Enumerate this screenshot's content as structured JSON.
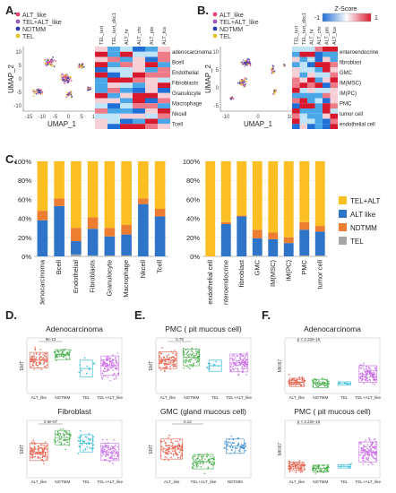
{
  "panels": {
    "A": {
      "letter": "A.",
      "legend": [
        "ALT_like",
        "TEL+ALT_like",
        "NDTMM",
        "TEL"
      ],
      "legend_colors": [
        "#e8457a",
        "#9b59b6",
        "#2c3e9e",
        "#e6c229"
      ],
      "umap_x_label": "UMAP_1",
      "umap_y_label": "UMAP_2",
      "umap_x_ticks": [
        "-15",
        "-10",
        "-5",
        "0",
        "5",
        "10"
      ],
      "umap_y_ticks": [
        "10",
        "5",
        "0",
        "-5",
        "-10"
      ],
      "heatmap_col_labels": [
        "TEL_tert",
        "TEL_tert_dkc1",
        "ALT_hr",
        "ALT_chr",
        "ALT_pts",
        "ALT_fus"
      ],
      "heatmap_row_labels": [
        "adenocarcinoma",
        "Bcell",
        "Endothelial",
        "Fibroblasts",
        "Granulocyte",
        "Macrophage",
        "Nkcell",
        "Tcell"
      ]
    },
    "B": {
      "letter": "B.",
      "legend": [
        "ALT_like",
        "TEL+ALT_like",
        "NDTMM",
        "TEL"
      ],
      "legend_colors": [
        "#e8457a",
        "#9b59b6",
        "#2c3e9e",
        "#e6c229"
      ],
      "umap_x_label": "UMAP_1",
      "umap_y_label": "UMAP_2",
      "umap_x_ticks": [
        "-10",
        "0",
        "10"
      ],
      "umap_y_ticks": [
        "10",
        "5",
        "0",
        "-5"
      ],
      "zscore_label": "Z-Score",
      "zscore_min": "-1",
      "zscore_max": "1",
      "heatmap_col_labels": [
        "TEL_tert",
        "TEL_tert_dkc1",
        "ALT_hr",
        "ALT_chr",
        "ALT_pts",
        "ALT_fus"
      ],
      "heatmap_row_labels": [
        "enteroendocrine",
        "fibroblast",
        "GMC",
        "IM(MSC)",
        "IM(PC)",
        "PMC",
        "tumor cell",
        "endothelial cell"
      ]
    },
    "C": {
      "letter": "C."
    },
    "D": {
      "letter": "D."
    },
    "E": {
      "letter": "E."
    },
    "F": {
      "letter": "F."
    }
  },
  "chart_data": [
    {
      "type": "bar",
      "stacked": true,
      "categories": [
        "adenocarcinoma",
        "Bcell",
        "Endothelial",
        "Fibroblasts",
        "Granulocyte",
        "Macrophage",
        "Nkcell",
        "Tcell"
      ],
      "y_ticks": [
        "0%",
        "20%",
        "40%",
        "60%",
        "80%",
        "100%"
      ],
      "series": [
        {
          "name": "TEL",
          "color": "#a6a6a6",
          "values": [
            0,
            0,
            2,
            1,
            1,
            1,
            0,
            0
          ]
        },
        {
          "name": "ALT like",
          "color": "#2e74c8",
          "values": [
            38,
            53,
            14,
            28,
            20,
            22,
            55,
            42
          ]
        },
        {
          "name": "NDTMM",
          "color": "#ed7d31",
          "values": [
            10,
            8,
            14,
            12,
            9,
            10,
            6,
            8
          ]
        },
        {
          "name": "TEL+ALT",
          "color": "#fbbf24",
          "values": [
            52,
            39,
            70,
            59,
            70,
            67,
            39,
            50
          ]
        }
      ]
    },
    {
      "type": "bar",
      "stacked": true,
      "categories": [
        "endothelial cell",
        "enteroendocrine",
        "fibroblast",
        "GMC",
        "IM(MSC)",
        "IM(PC)",
        "PMC",
        "tumor cell"
      ],
      "y_ticks": [
        "0%",
        "20%",
        "40%",
        "60%",
        "80%",
        "100%"
      ],
      "series": [
        {
          "name": "TEL",
          "color": "#a6a6a6",
          "values": [
            0,
            0,
            0,
            1,
            0,
            0,
            1,
            1
          ]
        },
        {
          "name": "ALT like",
          "color": "#2e74c8",
          "values": [
            0,
            34,
            42,
            18,
            18,
            14,
            27,
            25
          ]
        },
        {
          "name": "NDTMM",
          "color": "#ed7d31",
          "values": [
            0,
            2,
            1,
            9,
            7,
            6,
            8,
            6
          ]
        },
        {
          "name": "TEL+ALT",
          "color": "#fbbf24",
          "values": [
            100,
            64,
            57,
            72,
            75,
            80,
            64,
            68
          ]
        }
      ]
    }
  ],
  "legend_C": [
    {
      "label": "TEL+ALT",
      "color": "#fbbf24"
    },
    {
      "label": "ALT like",
      "color": "#2e74c8"
    },
    {
      "label": "NDTMM",
      "color": "#ed7d31"
    },
    {
      "label": "TEL",
      "color": "#a6a6a6"
    }
  ],
  "box_plots": {
    "D1": {
      "title": "Adenocarcinoma",
      "ylabel": "EMT",
      "pval": "9e-13",
      "groups": [
        "ALT_like",
        "NDTMM",
        "TEL",
        "TEL+ALT_like"
      ],
      "colors": [
        "#e8604c",
        "#4caf50",
        "#29b6d6",
        "#c86de6"
      ]
    },
    "D2": {
      "title": "Fibroblast",
      "ylabel": "EMT",
      "pval": "2.9e-07",
      "groups": [
        "ALT_like",
        "NDTMM",
        "TEL",
        "TEL+ALT_like"
      ],
      "colors": [
        "#e8604c",
        "#4caf50",
        "#29b6d6",
        "#c86de6"
      ]
    },
    "E1": {
      "title": "PMC ( pit mucous cell)",
      "ylabel": "EMT",
      "pval": "0.78",
      "groups": [
        "ALT_like",
        "NDTMM",
        "TEL",
        "TEL+ALT_like"
      ],
      "colors": [
        "#e8604c",
        "#4caf50",
        "#29b6d6",
        "#c86de6"
      ]
    },
    "E2": {
      "title": "GMC (gland mucous cell)",
      "ylabel": "EMT",
      "pval": "0.12",
      "groups": [
        "ALT_like",
        "TEL+ALT_like",
        "NDTMM"
      ],
      "colors": [
        "#e8604c",
        "#4caf50",
        "#3f8fd6"
      ]
    },
    "F1": {
      "title": "Adenocarcinoma",
      "ylabel": "MKI67",
      "pval": "p < 2.22e-16",
      "groups": [
        "ALT_like",
        "NDTMM",
        "TEL",
        "TEL+ALT_like"
      ],
      "colors": [
        "#e8604c",
        "#4caf50",
        "#29b6d6",
        "#c86de6"
      ]
    },
    "F2": {
      "title": "PMC ( pit mucous cell)",
      "ylabel": "MKI67",
      "pval": "p < 2.22e-16",
      "groups": [
        "ALT_like",
        "NDTMM",
        "TEL",
        "TEL+ALT_like"
      ],
      "colors": [
        "#e8604c",
        "#4caf50",
        "#29b6d6",
        "#c86de6"
      ]
    }
  }
}
